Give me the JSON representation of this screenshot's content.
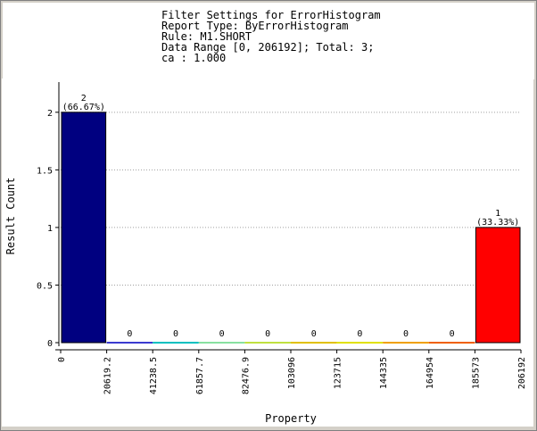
{
  "header": {
    "lines": [
      "Filter Settings for ErrorHistogram",
      "Report Type: ByErrorHistogram",
      "Rule: M1.SHORT",
      "Data Range [0, 206192]; Total: 3;",
      "ca : 1.000"
    ]
  },
  "chart_data": {
    "type": "bar",
    "xlabel": "Property",
    "ylabel": "Result Count",
    "ylim": [
      0,
      2.2
    ],
    "yticks": [
      "0",
      "0.5",
      "1",
      "1.5",
      "2"
    ],
    "ytick_values": [
      0,
      0.5,
      1,
      1.5,
      2
    ],
    "xticks": [
      "0",
      "20619.2",
      "41238.5",
      "61857.7",
      "82476.9",
      "103096",
      "123715",
      "144335",
      "164954",
      "185573",
      "206192"
    ],
    "values": [
      2,
      0,
      0,
      0,
      0,
      0,
      0,
      0,
      0,
      1
    ],
    "value_labels": [
      "2",
      "0",
      "0",
      "0",
      "0",
      "0",
      "0",
      "0",
      "0",
      "1"
    ],
    "percent_labels": [
      "(66.67%)",
      "",
      "",
      "",
      "",
      "",
      "",
      "",
      "",
      "(33.33%)"
    ],
    "colors": [
      "#000080",
      "#3b3bd0",
      "#00c0c0",
      "#88e0a0",
      "#c0e040",
      "#e0c000",
      "#e0e000",
      "#f0a000",
      "#f06000",
      "#ff0000"
    ],
    "grid": true
  }
}
